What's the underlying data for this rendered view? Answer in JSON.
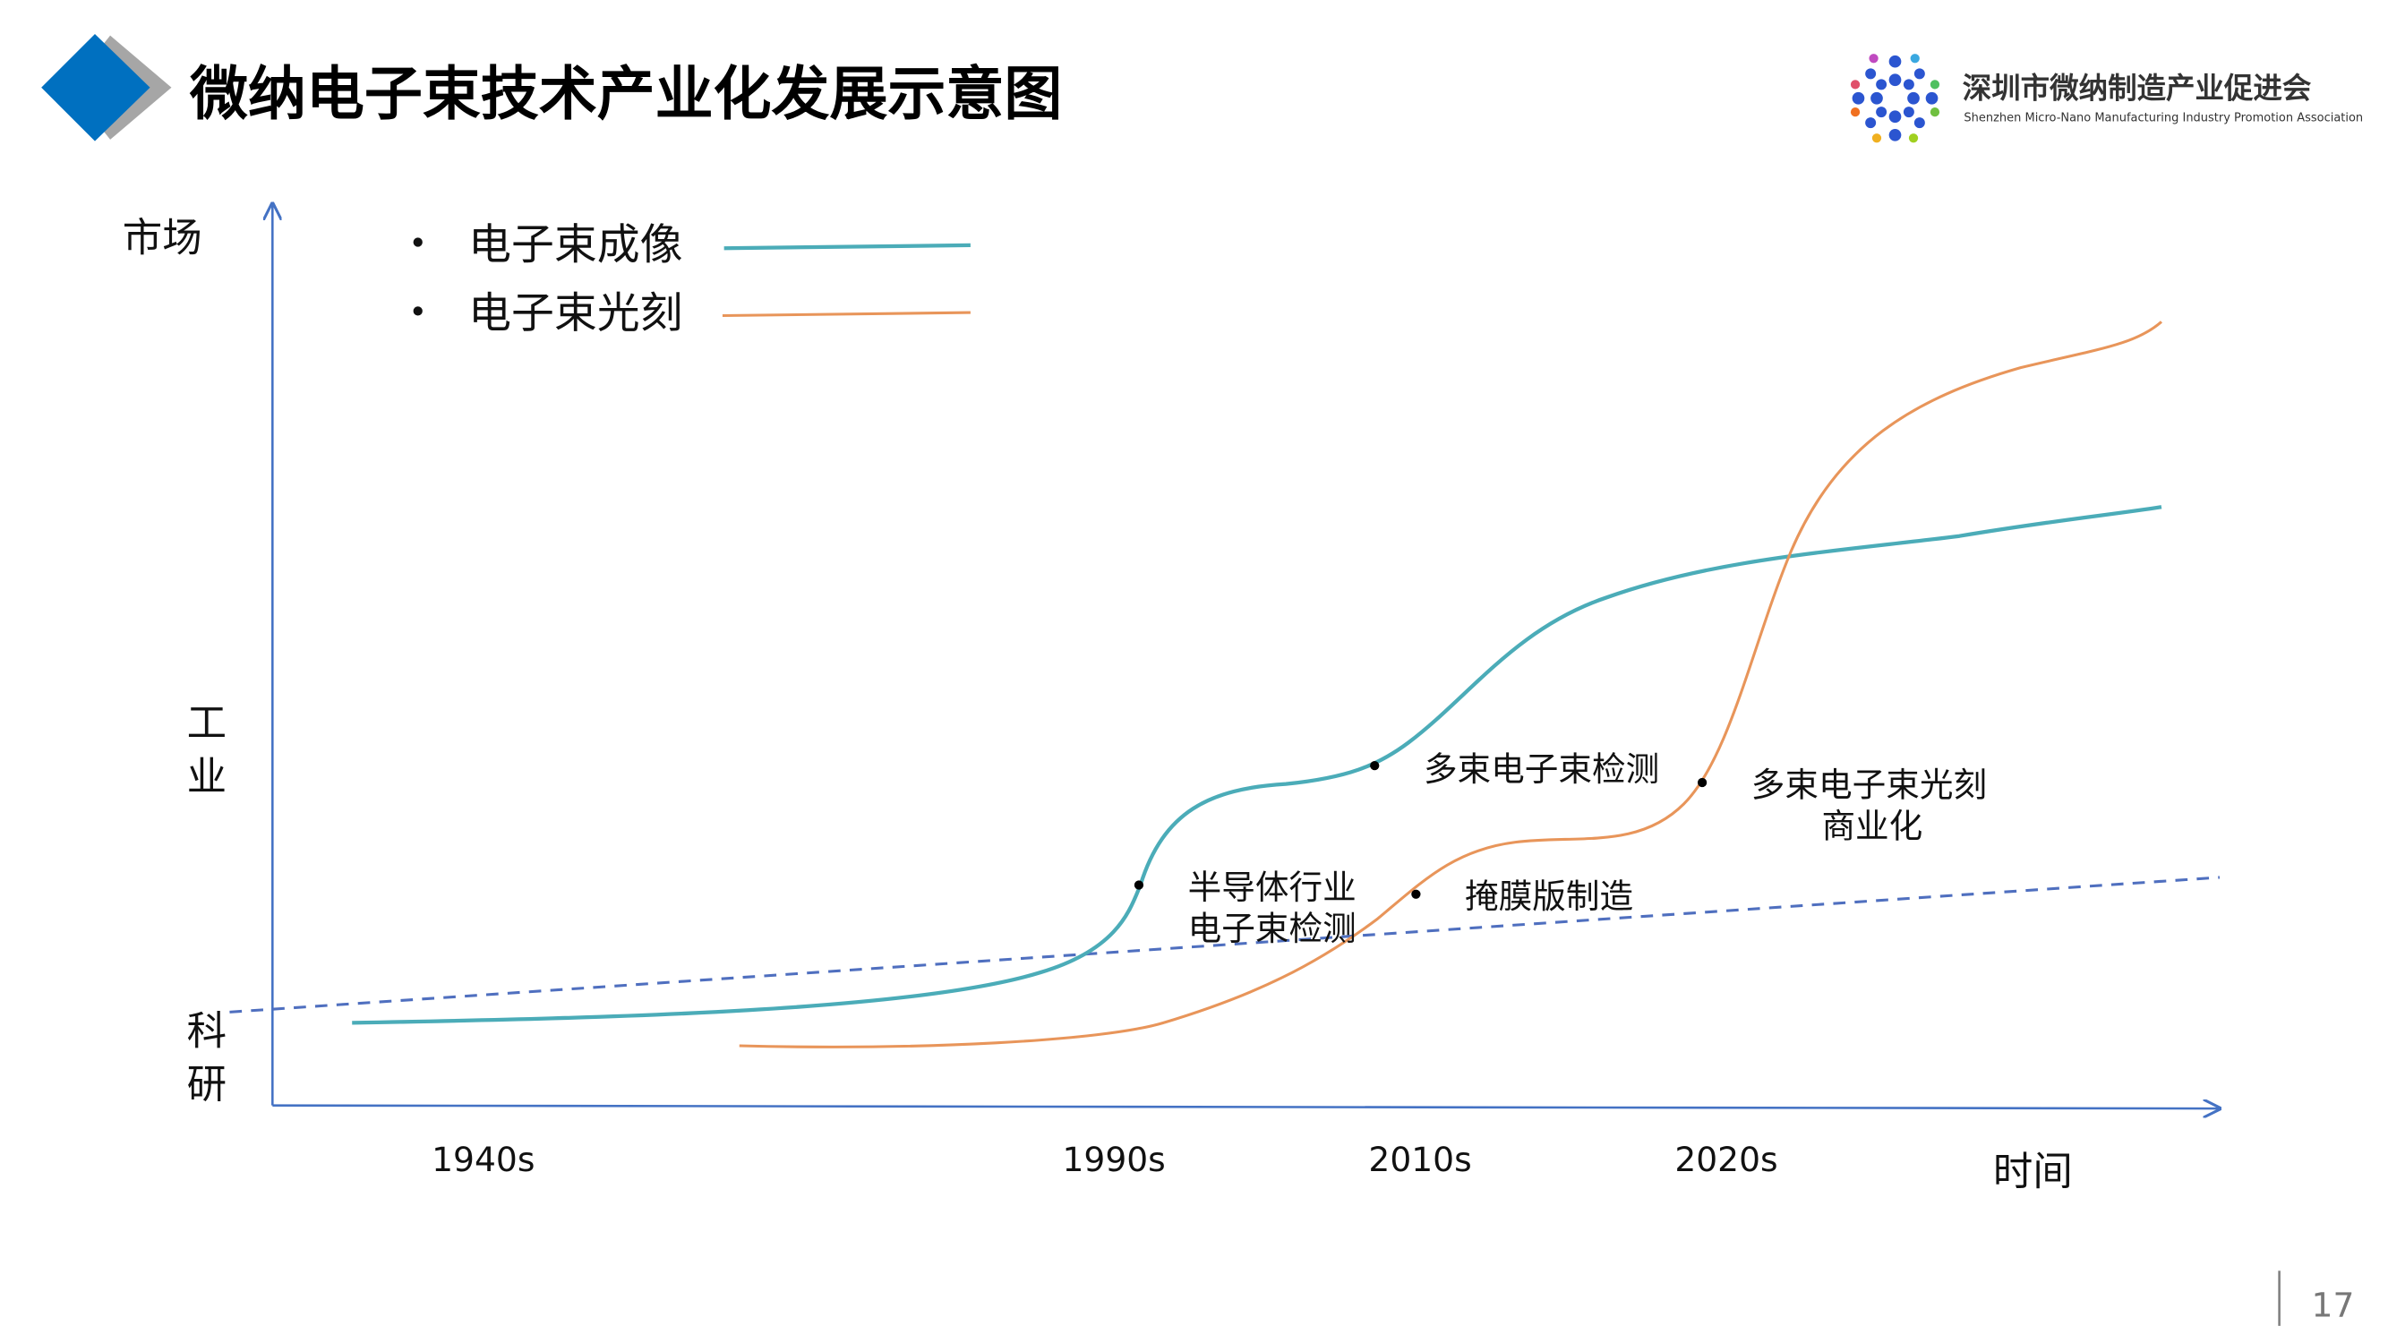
{
  "header": {
    "title": "微纳电子束技术产业化发展示意图",
    "logo": {
      "name_cn": "深圳市微纳制造产业促进会",
      "name_en": "Shenzhen Micro-Nano Manufacturing Industry Promotion Association"
    }
  },
  "diagram": {
    "y_axis_label": "市场",
    "y_levels": [
      {
        "chars": [
          "工",
          "业"
        ]
      },
      {
        "chars": [
          "科",
          "研"
        ]
      }
    ],
    "x_axis_label": "时间",
    "x_ticks": [
      "1940s",
      "1990s",
      "2010s",
      "2020s"
    ],
    "legend": [
      {
        "label": "电子束成像",
        "color": "#4BACB8"
      },
      {
        "label": "电子束光刻",
        "color": "#E8955A"
      }
    ],
    "annotations": [
      {
        "lines": [
          "半导体行业",
          "电子束检测"
        ]
      },
      {
        "lines": [
          "多束电子束检测"
        ]
      },
      {
        "lines": [
          "掩膜版制造"
        ]
      },
      {
        "lines": [
          "多束电子束光刻",
          "商业化"
        ]
      }
    ],
    "colors": {
      "axis": "#4472C4",
      "divider": "#4F6FBF",
      "accent": "#0070C0"
    }
  },
  "footer": {
    "page_number": "17"
  }
}
